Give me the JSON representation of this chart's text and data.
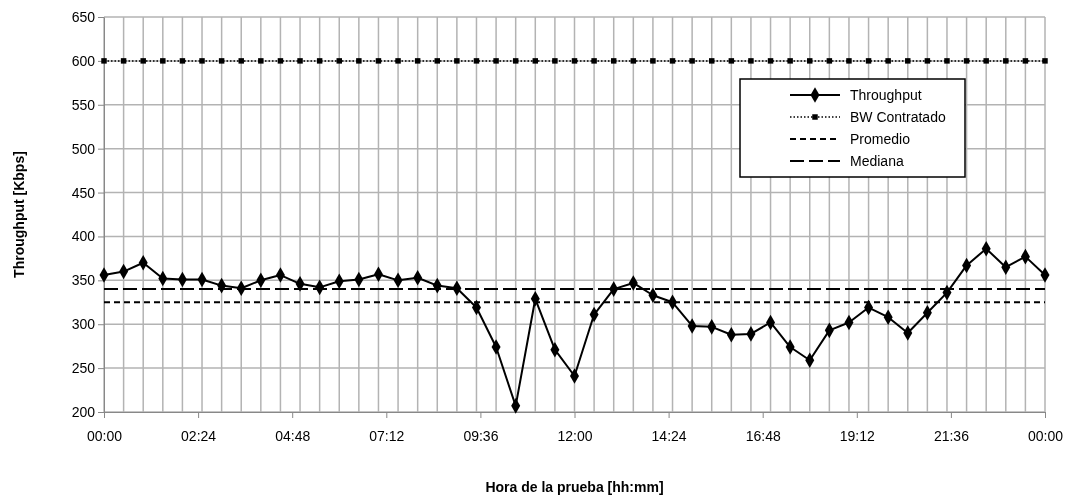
{
  "chart_data": {
    "type": "line",
    "xlabel": "Hora de la prueba [hh:mm]",
    "ylabel": "Throughput [Kbps]",
    "x": [
      0,
      0.5,
      1,
      1.5,
      2,
      2.5,
      3,
      3.5,
      4,
      4.5,
      5,
      5.5,
      6,
      6.5,
      7,
      7.5,
      8,
      8.5,
      9,
      9.5,
      10,
      10.5,
      11,
      11.5,
      12,
      12.5,
      13,
      13.5,
      14,
      14.5,
      15,
      15.5,
      16,
      16.5,
      17,
      17.5,
      18,
      18.5,
      19,
      19.5,
      20,
      20.5,
      21,
      21.5,
      22,
      22.5,
      23,
      23.5,
      24
    ],
    "series": [
      {
        "name": "Throughput",
        "color": "#000000",
        "marker": "diamond",
        "line_style": "solid",
        "values": [
          356,
          360,
          370,
          352,
          351,
          351,
          344,
          341,
          350,
          356,
          346,
          342,
          349,
          351,
          357,
          350,
          353,
          344,
          341,
          319,
          274,
          207,
          329,
          271,
          241,
          311,
          340,
          347,
          333,
          325,
          298,
          297,
          288,
          289,
          302,
          274,
          259,
          293,
          302,
          319,
          308,
          290,
          313,
          336,
          367,
          386,
          365,
          377,
          356
        ]
      },
      {
        "name": "BW Contratado",
        "color": "#000000",
        "marker": "square",
        "line_style": "dotted",
        "values": [
          600,
          600,
          600,
          600,
          600,
          600,
          600,
          600,
          600,
          600,
          600,
          600,
          600,
          600,
          600,
          600,
          600,
          600,
          600,
          600,
          600,
          600,
          600,
          600,
          600,
          600,
          600,
          600,
          600,
          600,
          600,
          600,
          600,
          600,
          600,
          600,
          600,
          600,
          600,
          600,
          600,
          600,
          600,
          600,
          600,
          600,
          600,
          600,
          600
        ]
      }
    ],
    "ref_lines": [
      {
        "axis": "y",
        "value": 325,
        "label": "Promedio",
        "color": "#000000",
        "line_style": "dashed"
      },
      {
        "axis": "y",
        "value": 340,
        "label": "Mediana",
        "color": "#000000",
        "line_style": "longdash"
      }
    ],
    "xlim": [
      0,
      24
    ],
    "xticks": [
      {
        "value": 0,
        "label": "00:00"
      },
      {
        "value": 2.4,
        "label": "02:24"
      },
      {
        "value": 4.8,
        "label": "04:48"
      },
      {
        "value": 7.2,
        "label": "07:12"
      },
      {
        "value": 9.6,
        "label": "09:36"
      },
      {
        "value": 12,
        "label": "12:00"
      },
      {
        "value": 14.4,
        "label": "14:24"
      },
      {
        "value": 16.8,
        "label": "16:48"
      },
      {
        "value": 19.2,
        "label": "19:12"
      },
      {
        "value": 21.6,
        "label": "21:36"
      },
      {
        "value": 24,
        "label": "00:00"
      }
    ],
    "ylim": [
      200,
      650
    ],
    "yticks": [
      200,
      250,
      300,
      350,
      400,
      450,
      500,
      550,
      600,
      650
    ],
    "grid": true,
    "legend": "top right"
  }
}
